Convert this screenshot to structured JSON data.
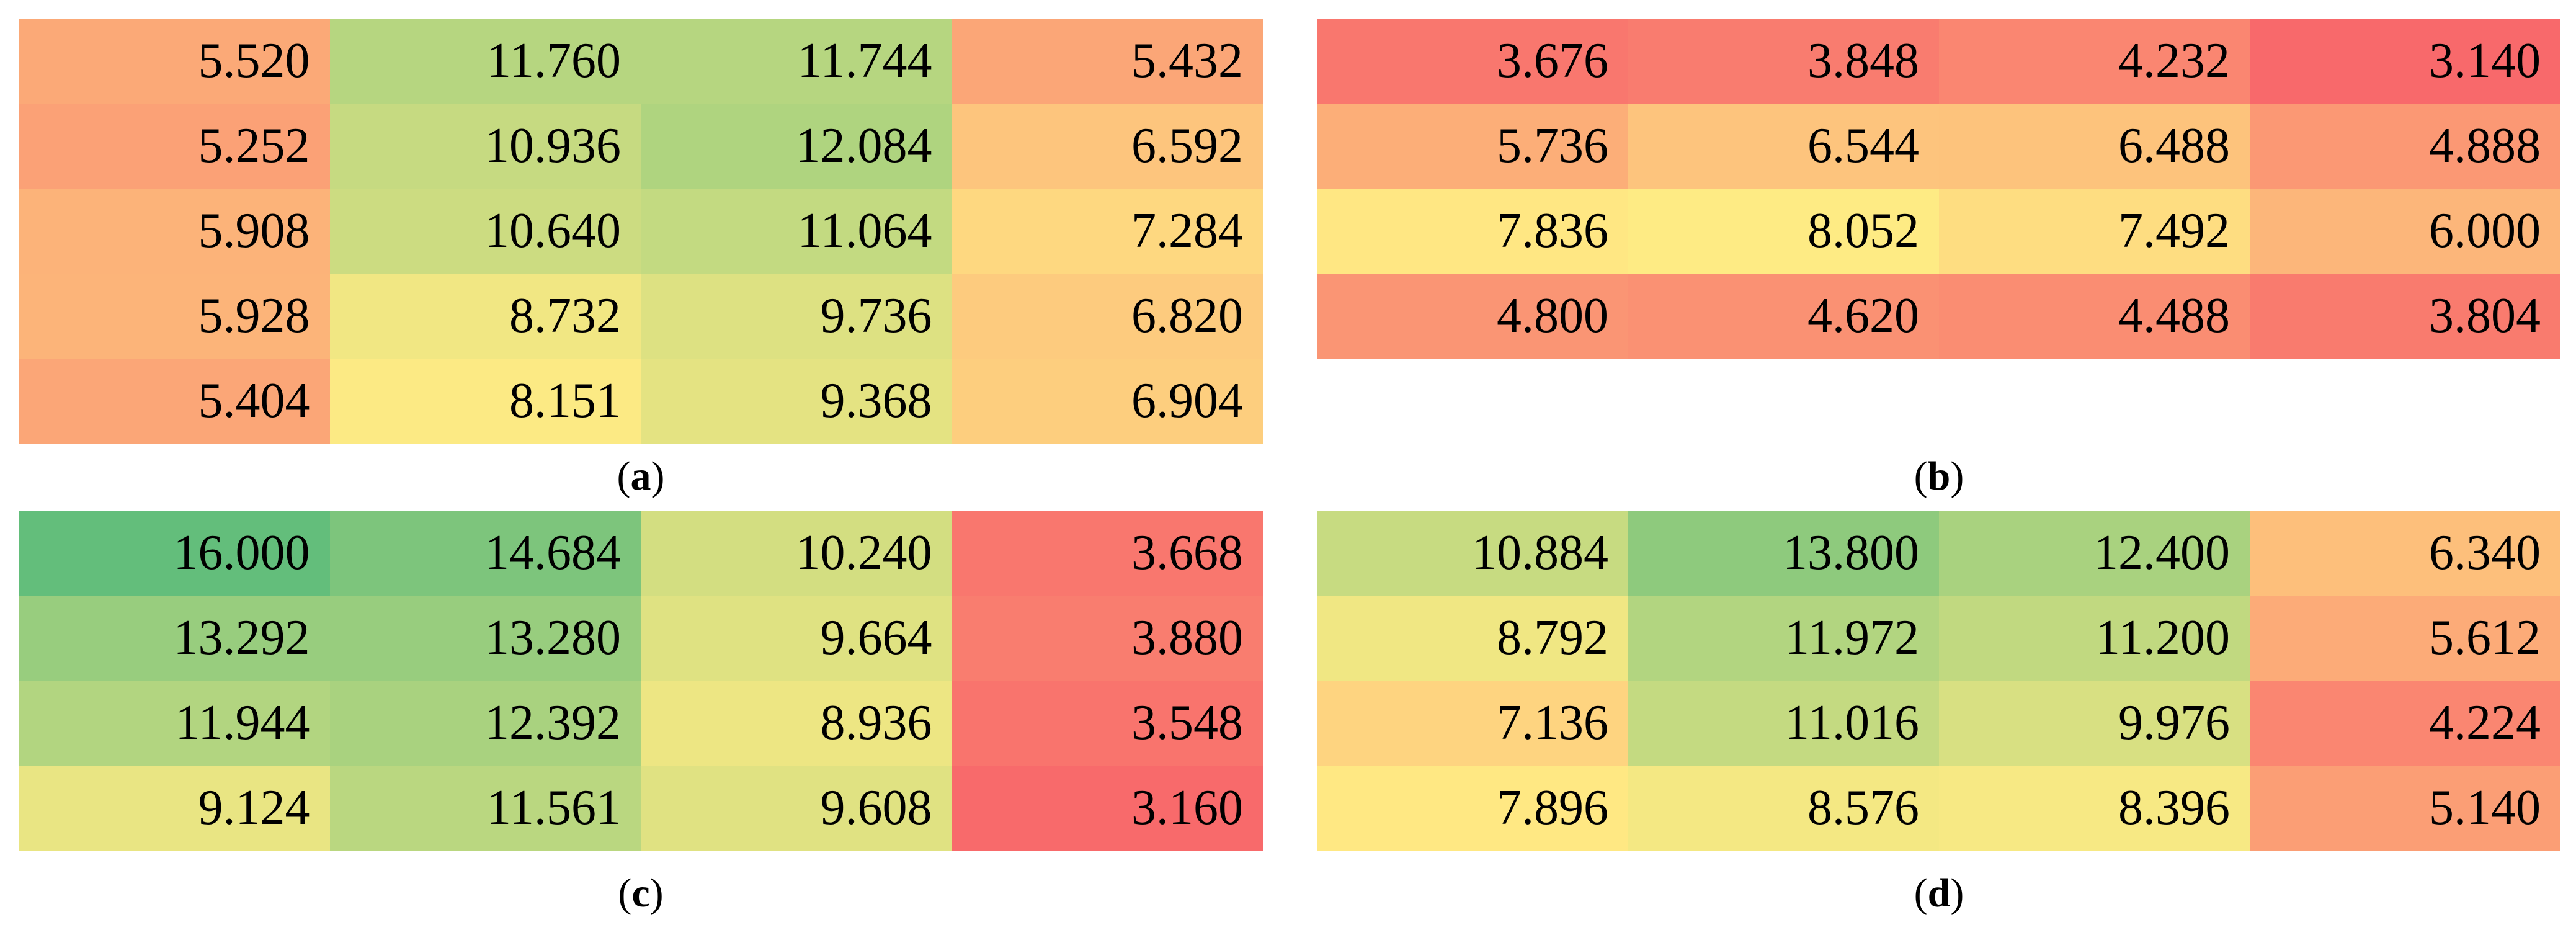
{
  "chart_data": [
    {
      "type": "heatmap",
      "panel": "a",
      "caption_letter": "a",
      "color_scale": {
        "low": "#f8696b",
        "mid": "#ffeb84",
        "high": "#63be7b",
        "min": 3.14,
        "mid_value": 8.0,
        "max": 16.0
      },
      "rows": [
        [
          "5.520",
          "11.760",
          "11.744",
          "5.432"
        ],
        [
          "5.252",
          "10.936",
          "12.084",
          "6.592"
        ],
        [
          "5.908",
          "10.640",
          "11.064",
          "7.284"
        ],
        [
          "5.928",
          "8.732",
          "9.736",
          "6.820"
        ],
        [
          "5.404",
          "8.151",
          "9.368",
          "6.904"
        ]
      ]
    },
    {
      "type": "heatmap",
      "panel": "b",
      "caption_letter": "b",
      "rows": [
        [
          "3.676",
          "3.848",
          "4.232",
          "3.140"
        ],
        [
          "5.736",
          "6.544",
          "6.488",
          "4.888"
        ],
        [
          "7.836",
          "8.052",
          "7.492",
          "6.000"
        ],
        [
          "4.800",
          "4.620",
          "4.488",
          "3.804"
        ]
      ]
    },
    {
      "type": "heatmap",
      "panel": "c",
      "caption_letter": "c",
      "rows": [
        [
          "16.000",
          "14.684",
          "10.240",
          "3.668"
        ],
        [
          "13.292",
          "13.280",
          "9.664",
          "3.880"
        ],
        [
          "11.944",
          "12.392",
          "8.936",
          "3.548"
        ],
        [
          "9.124",
          "11.561",
          "9.608",
          "3.160"
        ]
      ]
    },
    {
      "type": "heatmap",
      "panel": "d",
      "caption_letter": "d",
      "rows": [
        [
          "10.884",
          "13.800",
          "12.400",
          "6.340"
        ],
        [
          "8.792",
          "11.972",
          "11.200",
          "5.612"
        ],
        [
          "7.136",
          "11.016",
          "9.976",
          "4.224"
        ],
        [
          "7.896",
          "8.576",
          "8.396",
          "5.140"
        ]
      ]
    }
  ]
}
